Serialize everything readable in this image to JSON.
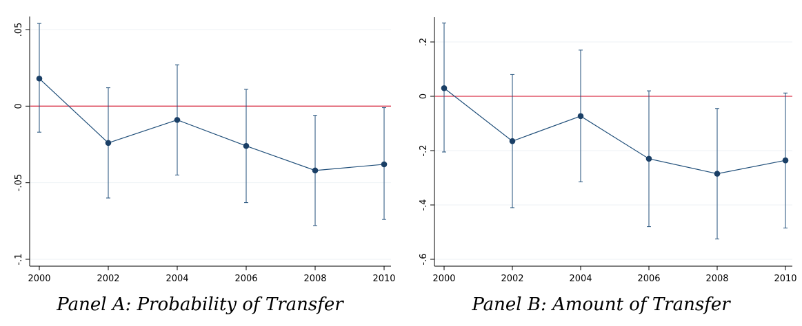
{
  "chart_data": [
    {
      "type": "line",
      "title": "",
      "caption": "Panel A: Probability of Transfer",
      "xlabel": "",
      "ylabel": "",
      "x": [
        2000,
        2002,
        2004,
        2006,
        2008,
        2010
      ],
      "x_ticks": [
        "2000",
        "2002",
        "2004",
        "2006",
        "2008",
        "2010"
      ],
      "xlim": [
        2000,
        2010
      ],
      "ylim": [
        -0.1,
        0.05
      ],
      "y_ticks": [
        ".05",
        "0",
        "-.05",
        "-.1"
      ],
      "y_tick_values": [
        0.05,
        0,
        -0.05,
        -0.1
      ],
      "y_tick_rotation": "vertical",
      "grid": true,
      "series": [
        {
          "values": [
            0.018,
            -0.024,
            -0.009,
            -0.026,
            -0.042,
            -0.038
          ],
          "ci_low": [
            -0.017,
            -0.06,
            -0.045,
            -0.063,
            -0.078,
            -0.074
          ],
          "ci_high": [
            0.054,
            0.012,
            0.027,
            0.011,
            -0.006,
            -0.001
          ],
          "color": "#1f4e79"
        }
      ],
      "reference_line": {
        "y": 0,
        "color": "#d9354a"
      }
    },
    {
      "type": "line",
      "title": "",
      "caption": "Panel B: Amount of Transfer",
      "xlabel": "",
      "ylabel": "",
      "x": [
        2000,
        2002,
        2004,
        2006,
        2008,
        2010
      ],
      "x_ticks": [
        "2000",
        "2002",
        "2004",
        "2006",
        "2008",
        "2010"
      ],
      "xlim": [
        2000,
        2010
      ],
      "ylim": [
        -0.6,
        0.2
      ],
      "y_ticks": [
        ".2",
        "0",
        "-.2",
        "-.4",
        "-.6"
      ],
      "y_tick_values": [
        0.2,
        0,
        -0.2,
        -0.4,
        -0.6
      ],
      "y_tick_rotation": "vertical",
      "grid": true,
      "series": [
        {
          "values": [
            0.03,
            -0.165,
            -0.073,
            -0.23,
            -0.285,
            -0.236
          ],
          "ci_low": [
            -0.205,
            -0.41,
            -0.315,
            -0.48,
            -0.525,
            -0.485
          ],
          "ci_high": [
            0.27,
            0.08,
            0.17,
            0.02,
            -0.045,
            0.012
          ],
          "color": "#1f4e79"
        }
      ],
      "reference_line": {
        "y": 0,
        "color": "#d9354a"
      }
    }
  ]
}
